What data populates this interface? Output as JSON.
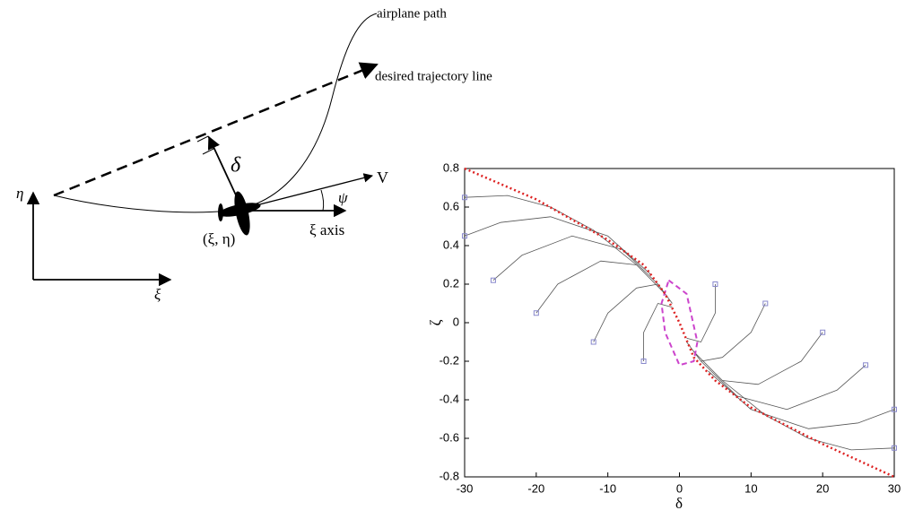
{
  "diagram": {
    "path_label": "airplane path",
    "trajectory_label": "desired trajectory line",
    "delta": "δ",
    "velocity": "V",
    "heading": "ψ",
    "eta_axis": "η",
    "xi_axis": "ξ",
    "position": "(ξ, η)",
    "body_axis": "ξ axis"
  },
  "chart_data": {
    "type": "line",
    "xlabel": "δ",
    "ylabel": "ζ",
    "xlim": [
      -30,
      30
    ],
    "ylim": [
      -0.8,
      0.8
    ],
    "xticks": [
      -30,
      -20,
      -10,
      0,
      10,
      20,
      30
    ],
    "yticks": [
      -0.8,
      -0.6,
      -0.4,
      -0.2,
      0,
      0.2,
      0.4,
      0.6,
      0.8
    ],
    "series": [
      {
        "color": "#555555",
        "marker": "square",
        "x": [
          -30,
          -24,
          -18,
          -12,
          -6
        ],
        "values": [
          0.65,
          0.66,
          0.6,
          0.48,
          0.3
        ]
      },
      {
        "color": "#555555",
        "marker": "square",
        "x": [
          -30,
          -25,
          -18,
          -10,
          -4
        ],
        "values": [
          0.45,
          0.52,
          0.55,
          0.45,
          0.25
        ]
      },
      {
        "color": "#555555",
        "marker": "square",
        "x": [
          -26,
          -22,
          -15,
          -8,
          -3
        ],
        "values": [
          0.22,
          0.35,
          0.45,
          0.38,
          0.2
        ]
      },
      {
        "color": "#555555",
        "marker": "square",
        "x": [
          -20,
          -17,
          -11,
          -6,
          -2
        ],
        "values": [
          0.05,
          0.2,
          0.32,
          0.3,
          0.15
        ]
      },
      {
        "color": "#555555",
        "marker": "square",
        "x": [
          -12,
          -10,
          -6,
          -3,
          -1
        ],
        "values": [
          -0.1,
          0.05,
          0.18,
          0.2,
          0.1
        ]
      },
      {
        "color": "#555555",
        "marker": "square",
        "x": [
          -5,
          -5,
          -3,
          -1
        ],
        "values": [
          -0.2,
          -0.05,
          0.1,
          0.08
        ]
      },
      {
        "color": "#555555",
        "marker": "square",
        "x": [
          30,
          24,
          18,
          12,
          6
        ],
        "values": [
          -0.65,
          -0.66,
          -0.6,
          -0.48,
          -0.3
        ]
      },
      {
        "color": "#555555",
        "marker": "square",
        "x": [
          30,
          25,
          18,
          10,
          4
        ],
        "values": [
          -0.45,
          -0.52,
          -0.55,
          -0.45,
          -0.25
        ]
      },
      {
        "color": "#555555",
        "marker": "square",
        "x": [
          26,
          22,
          15,
          8,
          3
        ],
        "values": [
          -0.22,
          -0.35,
          -0.45,
          -0.38,
          -0.2
        ]
      },
      {
        "color": "#555555",
        "marker": "square",
        "x": [
          20,
          17,
          11,
          6,
          2
        ],
        "values": [
          -0.05,
          -0.2,
          -0.32,
          -0.3,
          -0.15
        ]
      },
      {
        "color": "#555555",
        "marker": "square",
        "x": [
          12,
          10,
          6,
          3,
          1
        ],
        "values": [
          0.1,
          -0.05,
          -0.18,
          -0.2,
          -0.1
        ]
      },
      {
        "color": "#555555",
        "marker": "square",
        "x": [
          5,
          5,
          3,
          1
        ],
        "values": [
          0.2,
          0.05,
          -0.1,
          -0.08
        ]
      },
      {
        "color": "#cc44cc",
        "dash": "dashed",
        "x": [
          -1.5,
          1,
          2.5,
          2,
          0,
          -2,
          -2.5,
          -1.5
        ],
        "values": [
          0.22,
          0.15,
          -0.1,
          -0.2,
          -0.22,
          -0.05,
          0.1,
          0.22
        ]
      },
      {
        "color": "#dd2222",
        "dash": "dotted",
        "x": [
          -30,
          -20,
          -10,
          -5,
          -2,
          0,
          2,
          5,
          10,
          20,
          30
        ],
        "values": [
          0.8,
          0.64,
          0.43,
          0.3,
          0.15,
          0,
          -0.18,
          -0.3,
          -0.44,
          -0.63,
          -0.8
        ]
      }
    ]
  }
}
